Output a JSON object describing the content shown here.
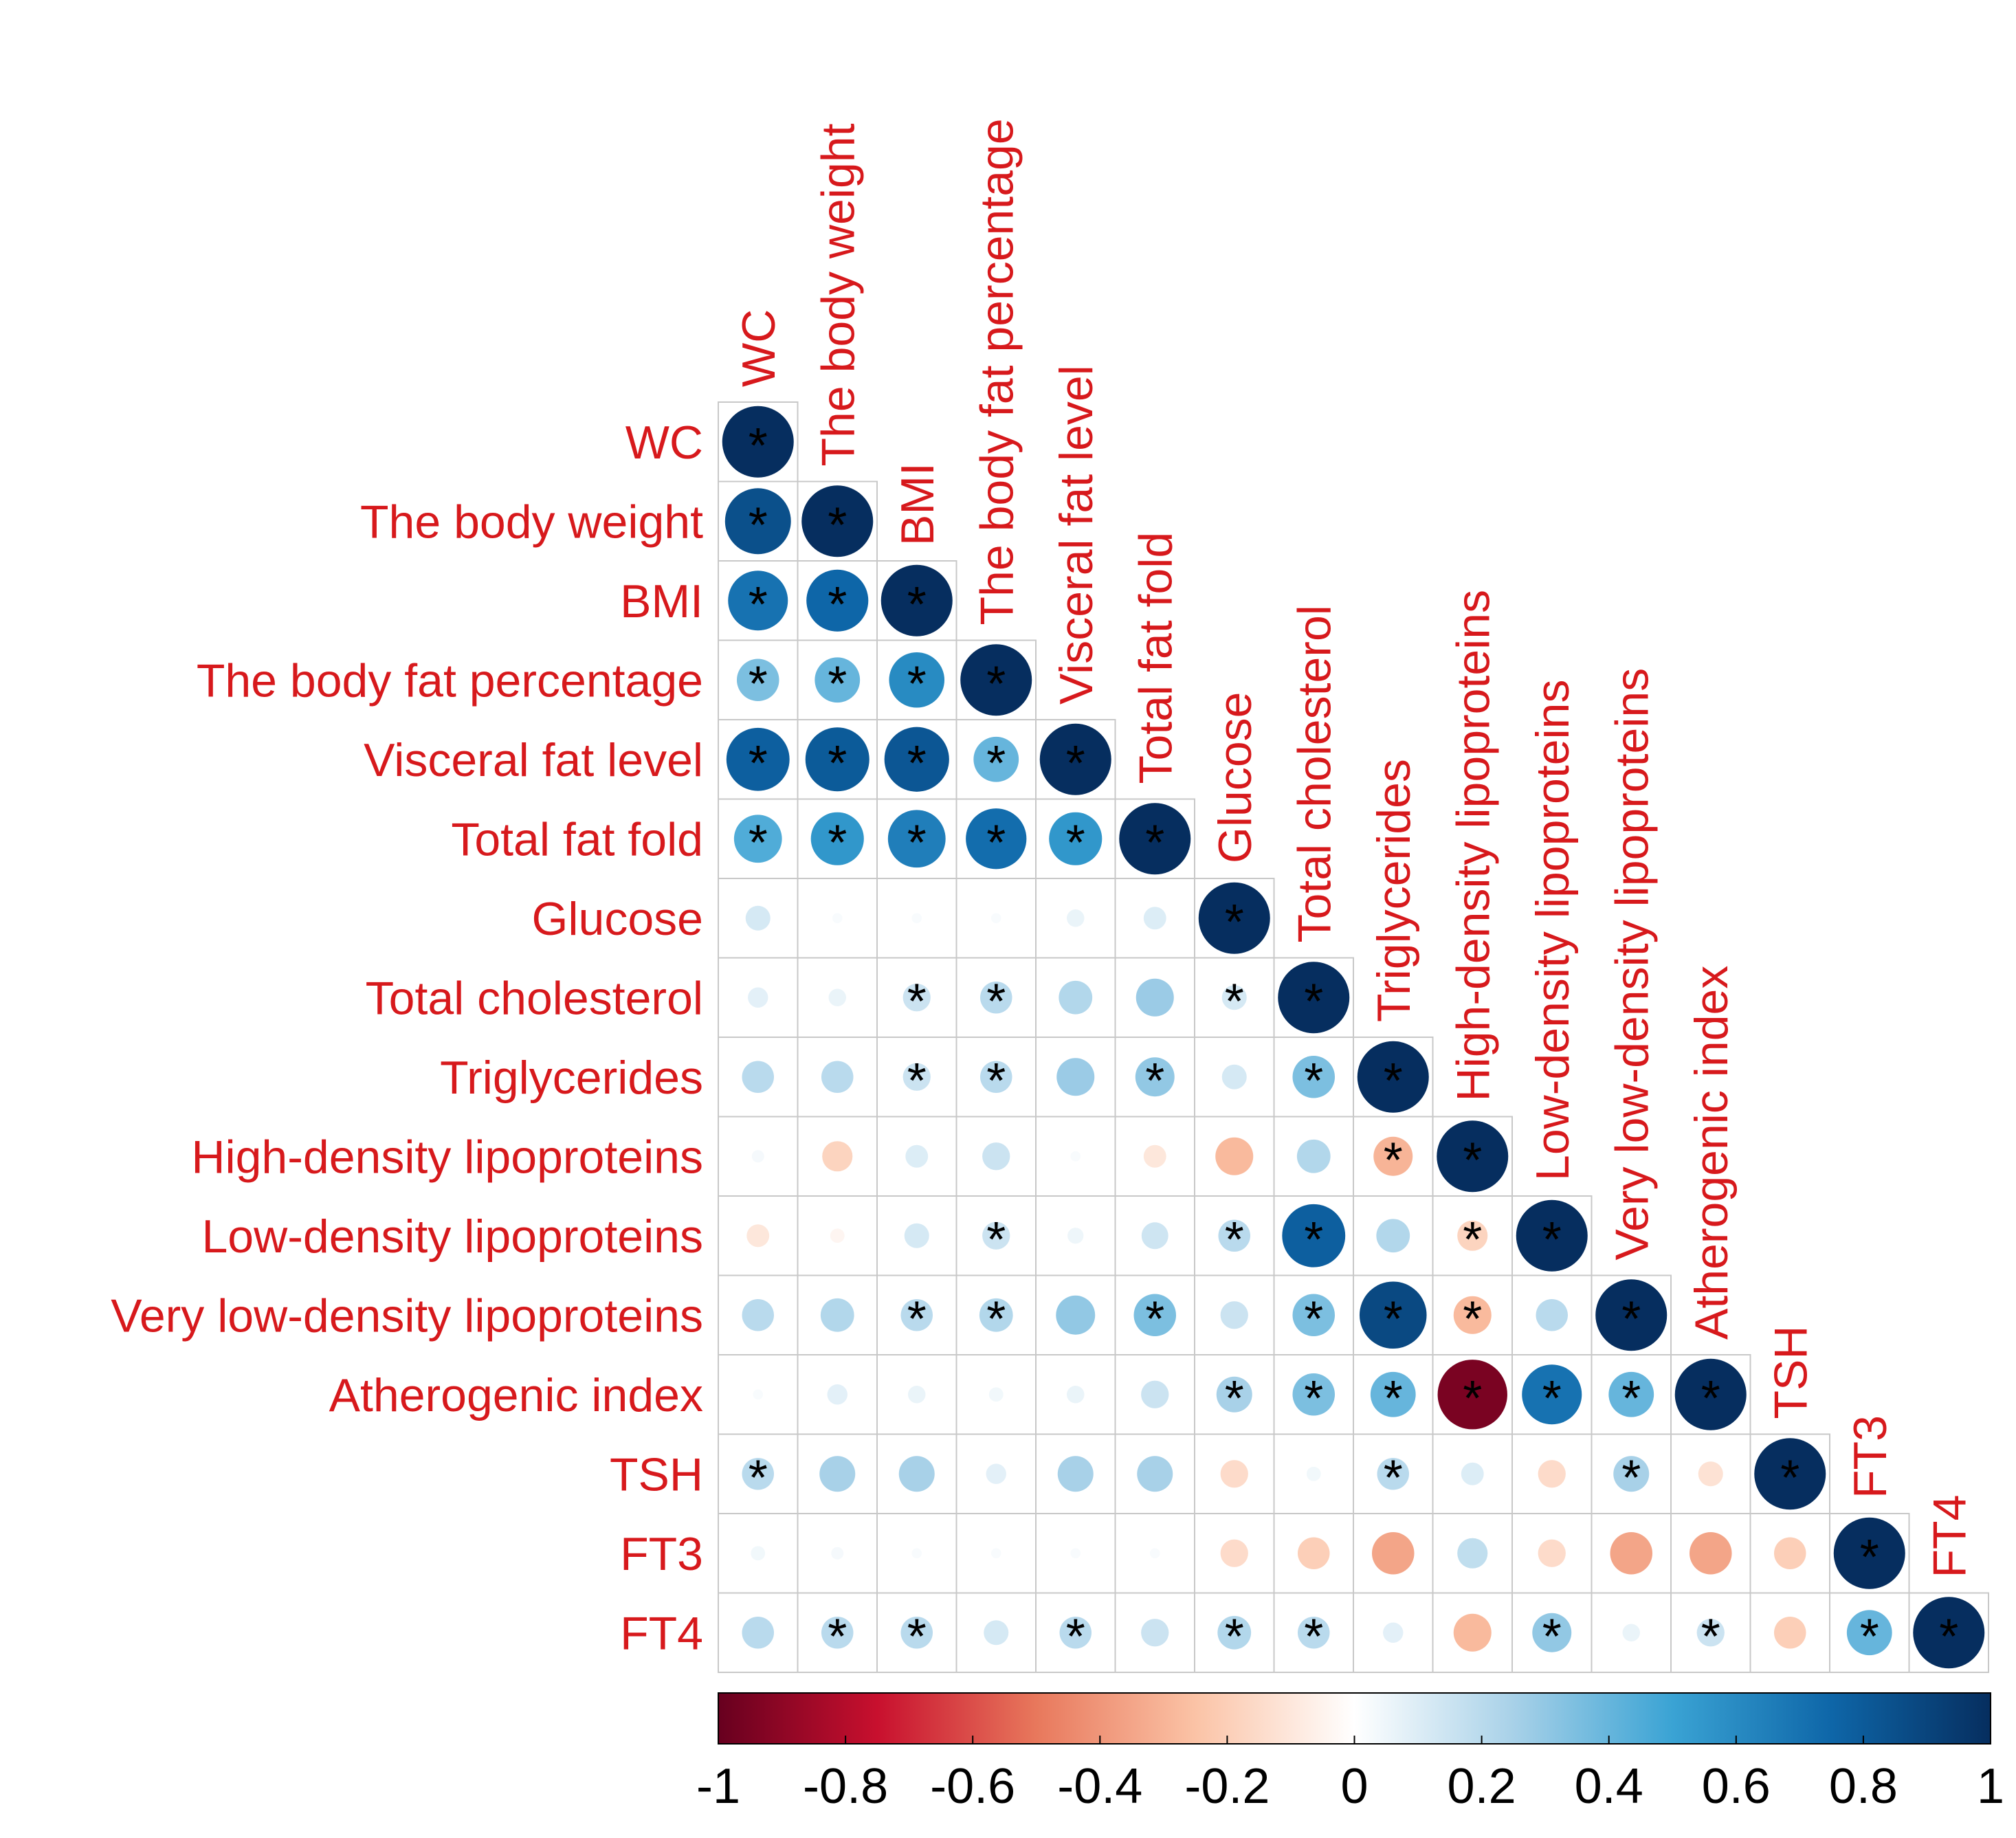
{
  "chart_data": {
    "type": "heatmap",
    "subtype": "correlogram-lower-triangle",
    "variables": [
      "WC",
      "The body weight",
      "BMI",
      "The body fat percentage",
      "Visceral fat level",
      "Total fat fold",
      "Glucose",
      "Total cholesterol",
      "Triglycerides",
      "High-density lipoproteins",
      "Low-density lipoproteins",
      "Very low-density lipoproteins",
      "Atherogenic index",
      "TSH",
      "FT3",
      "FT4"
    ],
    "matrix": [
      [
        1.0
      ],
      [
        0.85,
        1.0
      ],
      [
        0.7,
        0.75,
        1.0
      ],
      [
        0.35,
        0.4,
        0.6,
        1.0
      ],
      [
        0.78,
        0.8,
        0.82,
        0.4,
        1.0
      ],
      [
        0.45,
        0.55,
        0.65,
        0.72,
        0.55,
        1.0
      ],
      [
        0.12,
        0.02,
        0.02,
        0.02,
        0.06,
        0.1,
        1.0
      ],
      [
        0.08,
        0.06,
        0.15,
        0.2,
        0.22,
        0.28,
        0.12,
        1.0
      ],
      [
        0.2,
        0.2,
        0.15,
        0.2,
        0.28,
        0.3,
        0.12,
        0.35,
        1.0
      ],
      [
        0.03,
        -0.18,
        0.1,
        0.15,
        0.02,
        -0.1,
        -0.28,
        0.22,
        -0.3,
        1.0
      ],
      [
        -0.1,
        -0.04,
        0.12,
        0.15,
        0.05,
        0.14,
        0.2,
        0.78,
        0.22,
        -0.18,
        1.0
      ],
      [
        0.2,
        0.22,
        0.2,
        0.22,
        0.3,
        0.35,
        0.15,
        0.35,
        0.88,
        -0.28,
        0.2,
        1.0
      ],
      [
        0.02,
        0.08,
        0.06,
        0.04,
        0.06,
        0.15,
        0.25,
        0.35,
        0.4,
        -0.95,
        0.7,
        0.4,
        1.0
      ],
      [
        0.2,
        0.25,
        0.25,
        0.08,
        0.25,
        0.25,
        -0.15,
        0.04,
        0.2,
        0.1,
        -0.15,
        0.25,
        -0.12,
        1.0
      ],
      [
        0.04,
        0.03,
        0.02,
        0.02,
        0.02,
        0.02,
        -0.15,
        -0.2,
        -0.35,
        0.18,
        -0.15,
        -0.35,
        -0.35,
        -0.2,
        1.0
      ],
      [
        0.2,
        0.2,
        0.2,
        0.12,
        0.2,
        0.15,
        0.22,
        0.2,
        0.08,
        -0.28,
        0.3,
        0.06,
        0.15,
        -0.2,
        0.4,
        1.0
      ]
    ],
    "significant": [
      [
        1
      ],
      [
        1,
        1
      ],
      [
        1,
        1,
        1
      ],
      [
        1,
        1,
        1,
        1
      ],
      [
        1,
        1,
        1,
        1,
        1
      ],
      [
        1,
        1,
        1,
        1,
        1,
        1
      ],
      [
        0,
        0,
        0,
        0,
        0,
        0,
        1
      ],
      [
        0,
        0,
        1,
        1,
        0,
        0,
        1,
        1
      ],
      [
        0,
        0,
        1,
        1,
        0,
        1,
        0,
        1,
        1
      ],
      [
        0,
        0,
        0,
        0,
        0,
        0,
        0,
        0,
        1,
        1
      ],
      [
        0,
        0,
        0,
        1,
        0,
        0,
        1,
        1,
        0,
        1,
        1
      ],
      [
        0,
        0,
        1,
        1,
        0,
        1,
        0,
        1,
        1,
        1,
        0,
        1
      ],
      [
        0,
        0,
        0,
        0,
        0,
        0,
        1,
        1,
        1,
        1,
        1,
        1,
        1
      ],
      [
        1,
        0,
        0,
        0,
        0,
        0,
        0,
        0,
        1,
        0,
        0,
        1,
        0,
        1
      ],
      [
        0,
        0,
        0,
        0,
        0,
        0,
        0,
        0,
        0,
        0,
        0,
        0,
        0,
        0,
        1
      ],
      [
        0,
        1,
        1,
        0,
        1,
        0,
        1,
        1,
        0,
        0,
        1,
        0,
        1,
        0,
        1,
        1
      ]
    ],
    "significance_marker": "*",
    "color_scale": {
      "min": -1,
      "max": 1,
      "stops": [
        {
          "value": -1.0,
          "color": "#67001f"
        },
        {
          "value": -0.75,
          "color": "#c8102e"
        },
        {
          "value": -0.5,
          "color": "#e8785c"
        },
        {
          "value": -0.25,
          "color": "#fbc3a6"
        },
        {
          "value": 0.0,
          "color": "#ffffff"
        },
        {
          "value": 0.25,
          "color": "#a8d1e8"
        },
        {
          "value": 0.5,
          "color": "#3aa3d4"
        },
        {
          "value": 0.75,
          "color": "#0e66a8"
        },
        {
          "value": 1.0,
          "color": "#062e5f"
        }
      ],
      "ticks": [
        "-1",
        "-0.8",
        "-0.6",
        "-0.4",
        "-0.2",
        "0",
        "0.2",
        "0.4",
        "0.6",
        "0.8",
        "1"
      ],
      "tick_values": [
        -1,
        -0.8,
        -0.6,
        -0.4,
        -0.2,
        0,
        0.2,
        0.4,
        0.6,
        0.8,
        1
      ],
      "placement": "bottom"
    },
    "label_color": "#d7191c",
    "grid_color": "#c8c8c8"
  }
}
